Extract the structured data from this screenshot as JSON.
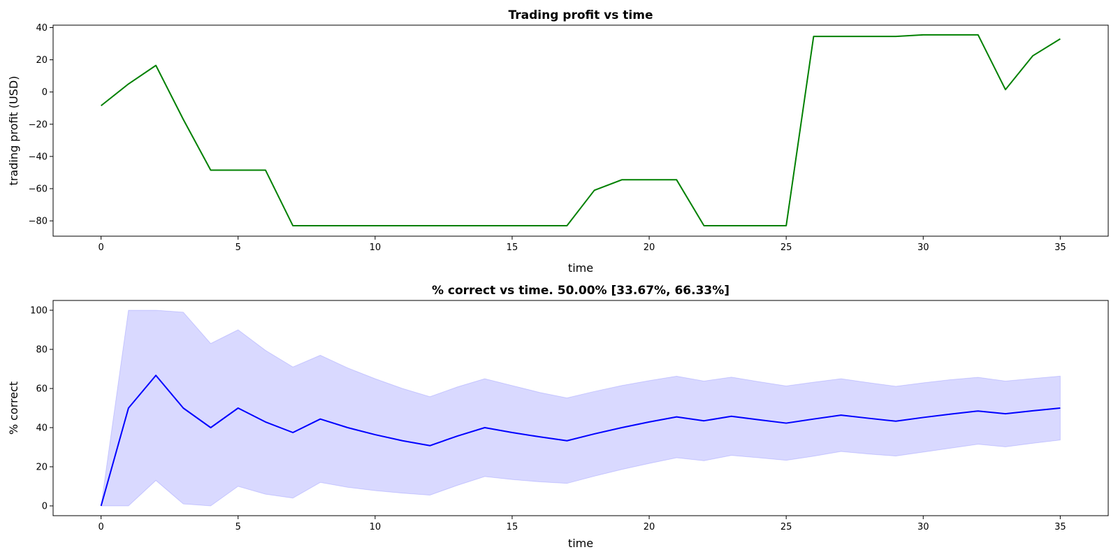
{
  "chart_data": [
    {
      "type": "line",
      "title": "Trading profit vs time",
      "xlabel": "time",
      "ylabel": "trading profit (USD)",
      "xlim": [
        -1.75,
        36.75
      ],
      "ylim": [
        -89.5,
        41.5
      ],
      "xticks": [
        0,
        5,
        10,
        15,
        20,
        25,
        30,
        35
      ],
      "yticks": [
        -80,
        -60,
        -40,
        -20,
        0,
        20,
        40
      ],
      "ytick_labels": [
        "−80",
        "−60",
        "−40",
        "−20",
        "0",
        "20",
        "40"
      ],
      "grid": false,
      "series": [
        {
          "color": "#008000",
          "x": [
            0,
            1,
            2,
            3,
            4,
            5,
            6,
            7,
            8,
            9,
            10,
            11,
            12,
            13,
            14,
            15,
            16,
            17,
            18,
            19,
            20,
            21,
            22,
            23,
            24,
            25,
            26,
            27,
            28,
            29,
            30,
            31,
            32,
            33,
            34,
            35
          ],
          "values": [
            -8.5,
            5,
            16.5,
            -17,
            -48.5,
            -48.5,
            -48.5,
            -83,
            -83,
            -83,
            -83,
            -83,
            -83,
            -83,
            -83,
            -83,
            -83,
            -83,
            -61,
            -54.5,
            -54.5,
            -54.5,
            -83,
            -83,
            -83,
            -83,
            34.5,
            34.5,
            34.5,
            34.5,
            35.5,
            35.5,
            35.5,
            1.5,
            22.5,
            33
          ]
        }
      ]
    },
    {
      "type": "line",
      "title": "% correct vs time. 50.00% [33.67%, 66.33%]",
      "xlabel": "time",
      "ylabel": "% correct",
      "xlim": [
        -1.75,
        36.75
      ],
      "ylim": [
        -5,
        105
      ],
      "xticks": [
        0,
        5,
        10,
        15,
        20,
        25,
        30,
        35
      ],
      "yticks": [
        0,
        20,
        40,
        60,
        80,
        100
      ],
      "ytick_labels": [
        "0",
        "20",
        "40",
        "60",
        "80",
        "100"
      ],
      "grid": false,
      "series": [
        {
          "color": "#0000ff",
          "x": [
            0,
            1,
            2,
            3,
            4,
            5,
            6,
            7,
            8,
            9,
            10,
            11,
            12,
            13,
            14,
            15,
            16,
            17,
            18,
            19,
            20,
            21,
            22,
            23,
            24,
            25,
            26,
            27,
            28,
            29,
            30,
            31,
            32,
            33,
            34,
            35
          ],
          "values": [
            0,
            50,
            66.7,
            50,
            40,
            50,
            42.9,
            37.5,
            44.4,
            40,
            36.4,
            33.3,
            30.8,
            35.7,
            40,
            37.5,
            35.3,
            33.3,
            36.8,
            40,
            42.9,
            45.5,
            43.5,
            45.8,
            44,
            42.3,
            44.4,
            46.4,
            44.8,
            43.3,
            45.2,
            46.9,
            48.5,
            47.1,
            48.6,
            50
          ]
        }
      ],
      "band": {
        "color": "#0000ff",
        "opacity": 0.15,
        "lower": [
          0,
          0,
          13,
          1,
          0,
          10,
          6,
          4,
          12,
          9.5,
          7.8,
          6.5,
          5.5,
          10.5,
          15,
          13.5,
          12.3,
          11.5,
          15.2,
          18.6,
          21.7,
          24.6,
          23.1,
          25.8,
          24.6,
          23.3,
          25.4,
          27.8,
          26.5,
          25.5,
          27.5,
          29.5,
          31.5,
          30.2,
          32,
          33.67
        ],
        "upper": [
          0,
          100,
          100,
          99,
          83,
          90,
          79.5,
          71,
          77,
          70.5,
          65,
          60,
          55.8,
          60.8,
          65,
          61.5,
          58,
          55.2,
          58.5,
          61.5,
          64,
          66.3,
          63.8,
          65.8,
          63.5,
          61.3,
          63.2,
          65,
          63,
          61.1,
          62.9,
          64.5,
          65.7,
          63.8,
          65.1,
          66.33
        ]
      }
    }
  ]
}
